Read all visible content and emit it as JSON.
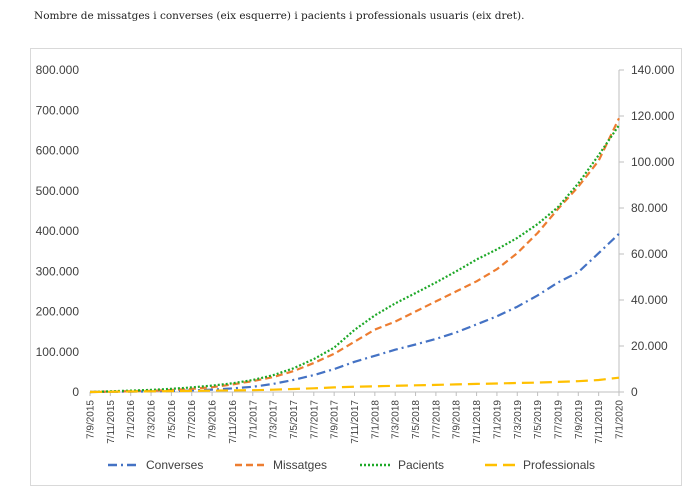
{
  "caption": "Nombre de missatges i converses (eix esquerre) i pacients i professionals usuaris (eix dret).",
  "chart_data": {
    "type": "line",
    "title": "",
    "x_labels": [
      "7/9/2015",
      "7/11/2015",
      "7/1/2016",
      "7/3/2016",
      "7/5/2016",
      "7/7/2016",
      "7/9/2016",
      "7/11/2016",
      "7/1/2017",
      "7/3/2017",
      "7/5/2017",
      "7/7/2017",
      "7/9/2017",
      "7/11/2017",
      "7/1/2018",
      "7/3/2018",
      "7/5/2018",
      "7/7/2018",
      "7/9/2018",
      "7/11/2018",
      "7/1/2019",
      "7/3/2019",
      "7/5/2019",
      "7/7/2019",
      "7/9/2019",
      "7/11/2019",
      "7/1/2020"
    ],
    "y_left": {
      "ylim": [
        0,
        800000
      ],
      "ticks": [
        "0",
        "100.000",
        "200.000",
        "300.000",
        "400.000",
        "500.000",
        "600.000",
        "700.000",
        "800.000"
      ]
    },
    "y_right": {
      "ylim": [
        0,
        140000
      ],
      "ticks": [
        "0",
        "20.000",
        "40.000",
        "60.000",
        "80.000",
        "100.000",
        "120.000",
        "140.000"
      ]
    },
    "legend_position": "bottom",
    "series": [
      {
        "name": "Converses",
        "axis": "left",
        "color": "#4472C4",
        "dash": "dashdot",
        "values": [
          0,
          500,
          1000,
          1500,
          2500,
          4000,
          6000,
          9000,
          13000,
          20000,
          30000,
          42000,
          57000,
          75000,
          90000,
          105000,
          118000,
          132000,
          148000,
          168000,
          188000,
          212000,
          240000,
          272000,
          298000,
          345000,
          393000
        ]
      },
      {
        "name": "Missatges",
        "axis": "left",
        "color": "#ED7D31",
        "dash": "dash",
        "values": [
          0,
          1000,
          2000,
          3000,
          5000,
          8000,
          12000,
          19000,
          27000,
          37000,
          52000,
          72000,
          95000,
          125000,
          155000,
          175000,
          200000,
          225000,
          250000,
          275000,
          305000,
          345000,
          395000,
          455000,
          510000,
          575000,
          680000
        ]
      },
      {
        "name": "Pacients",
        "axis": "right",
        "color": "#1DA827",
        "dash": "dot",
        "values": [
          0,
          300,
          600,
          900,
          1400,
          2000,
          2800,
          3800,
          5200,
          7300,
          10300,
          14300,
          19300,
          27000,
          33300,
          38500,
          43000,
          47600,
          52500,
          57600,
          62000,
          67000,
          73000,
          80400,
          90700,
          103000,
          116000
        ]
      },
      {
        "name": "Professionals",
        "axis": "right",
        "color": "#FFC000",
        "dash": "longdash",
        "values": [
          0,
          100,
          200,
          300,
          400,
          500,
          600,
          700,
          800,
          1000,
          1300,
          1600,
          2000,
          2300,
          2500,
          2700,
          2900,
          3100,
          3300,
          3500,
          3700,
          3900,
          4100,
          4400,
          4700,
          5200,
          6200
        ]
      }
    ]
  }
}
